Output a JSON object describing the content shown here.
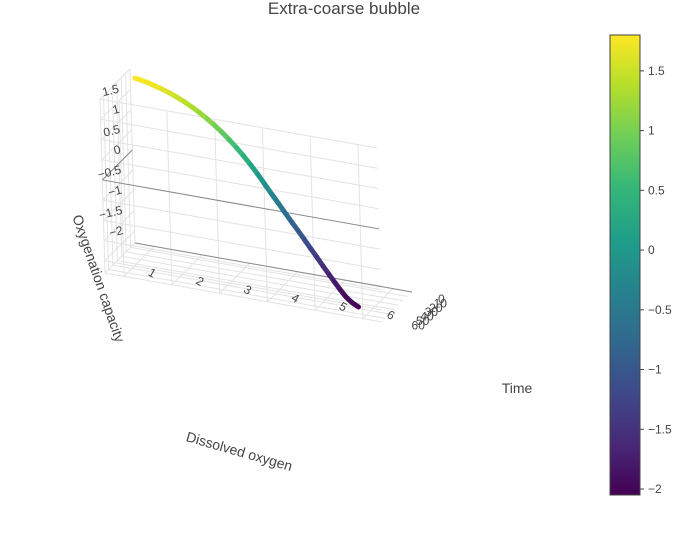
{
  "chart_data": {
    "type": "line3d",
    "title": "Extra-coarse bubble",
    "axes": {
      "x": {
        "label": "Dissolved oxygen",
        "ticks": [
          1,
          2,
          3,
          4,
          5,
          6
        ],
        "range": [
          0.6,
          6.4
        ]
      },
      "y": {
        "label": "Time",
        "ticks": [
          0,
          10,
          20,
          30,
          40,
          50,
          60
        ],
        "range": [
          0,
          68
        ]
      },
      "z": {
        "label": "Oxygenation capacity",
        "ticks": [
          -2,
          -1.5,
          -1,
          -0.5,
          0,
          0.5,
          1,
          1.5
        ],
        "range": [
          -2.3,
          2.0
        ]
      }
    },
    "grid": true,
    "colorscale": "Viridis",
    "colorbar": {
      "ticks": [
        -2,
        -1.5,
        -1,
        -0.5,
        0,
        0.5,
        1,
        1.5
      ],
      "tick_labels": [
        "−2",
        "−1.5",
        "−1",
        "−0.5",
        "0",
        "0.5",
        "1",
        "1.5"
      ],
      "range": [
        -2.05,
        1.8
      ]
    },
    "series": [
      {
        "x": [
          0.7,
          0.82,
          0.96,
          1.1,
          1.26,
          1.42,
          1.58,
          1.74,
          1.9,
          2.06,
          2.22,
          2.38,
          2.54,
          2.7,
          2.86,
          3.02,
          3.18,
          3.34,
          3.5,
          3.66,
          3.82,
          3.98,
          4.14,
          4.3,
          4.46,
          4.62,
          4.78,
          4.94,
          5.1,
          5.26,
          5.42,
          5.58,
          5.74,
          5.9
        ],
        "y": [
          0.3,
          0.5,
          0.7,
          0.9,
          1.1,
          1.3,
          1.6,
          1.9,
          2.3,
          2.8,
          3.4,
          4.1,
          5.0,
          6.0,
          7.2,
          8.6,
          10.2,
          12.0,
          14.0,
          16.3,
          18.8,
          21.5,
          24.4,
          27.5,
          30.8,
          34.3,
          38.0,
          41.9,
          46.0,
          50.3,
          54.8,
          59.5,
          63.4,
          66.5
        ],
        "z": [
          1.8,
          1.78,
          1.75,
          1.71,
          1.66,
          1.6,
          1.53,
          1.45,
          1.36,
          1.26,
          1.15,
          1.03,
          0.9,
          0.76,
          0.61,
          0.45,
          0.28,
          0.1,
          -0.09,
          -0.27,
          -0.44,
          -0.61,
          -0.77,
          -0.92,
          -1.07,
          -1.22,
          -1.36,
          -1.5,
          -1.63,
          -1.75,
          -1.86,
          -1.95,
          -2.01,
          -2.05
        ]
      }
    ]
  }
}
